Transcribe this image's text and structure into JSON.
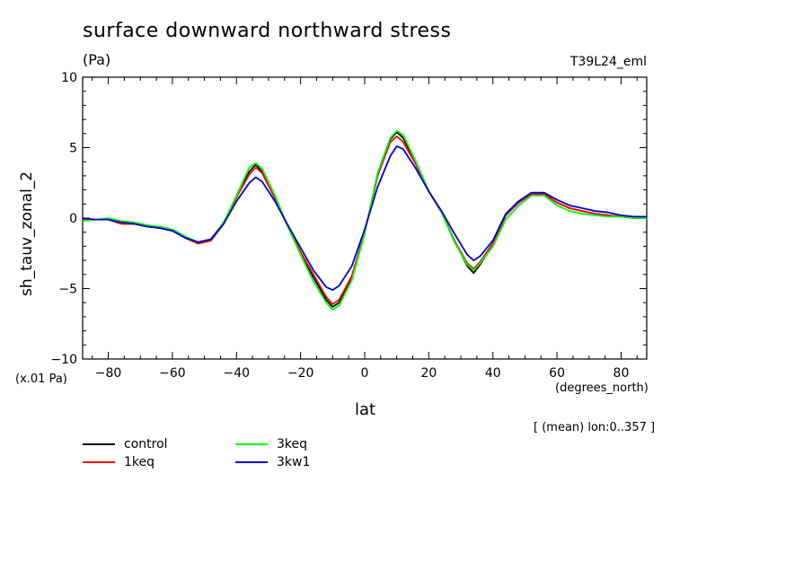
{
  "title": "surface downward northward stress",
  "units": "(Pa)",
  "run_id": "T39L24_eml",
  "scale_note": "(x.01 Pa)",
  "x_units": "(degrees_north)",
  "mean_note": "[ (mean) lon:0..357 ]",
  "chart_data": {
    "type": "line",
    "title": "surface downward northward stress",
    "xlabel": "lat",
    "ylabel": "sh_tauv_zonal_2",
    "xlim": [
      -88,
      88
    ],
    "ylim": [
      -10,
      10
    ],
    "xticks": [
      -80,
      -60,
      -40,
      -20,
      0,
      20,
      40,
      60,
      80
    ],
    "yticks": [
      -10,
      -5,
      0,
      5,
      10
    ],
    "x": [
      -88,
      -84,
      -80,
      -76,
      -72,
      -68,
      -64,
      -60,
      -56,
      -52,
      -48,
      -44,
      -40,
      -36,
      -34,
      -32,
      -28,
      -24,
      -20,
      -16,
      -12,
      -10,
      -8,
      -4,
      0,
      4,
      8,
      10,
      12,
      16,
      20,
      24,
      28,
      32,
      34,
      36,
      40,
      44,
      48,
      52,
      56,
      60,
      64,
      68,
      72,
      76,
      80,
      84,
      88
    ],
    "series": [
      {
        "name": "control",
        "color": "#000000",
        "values": [
          -0.1,
          -0.1,
          -0.1,
          -0.4,
          -0.4,
          -0.6,
          -0.7,
          -0.9,
          -1.4,
          -1.8,
          -1.6,
          -0.4,
          1.5,
          3.3,
          3.8,
          3.3,
          1.5,
          -0.6,
          -2.5,
          -4.2,
          -5.8,
          -6.3,
          -6.0,
          -4.2,
          -1.0,
          3.0,
          5.6,
          6.1,
          5.7,
          3.9,
          1.9,
          0.4,
          -1.6,
          -3.4,
          -3.9,
          -3.3,
          -1.9,
          0.2,
          1.1,
          1.7,
          1.7,
          1.1,
          0.7,
          0.5,
          0.3,
          0.2,
          0.1,
          0.0,
          0.0
        ]
      },
      {
        "name": "1keq",
        "color": "#ff0000",
        "values": [
          -0.1,
          -0.1,
          -0.1,
          -0.4,
          -0.4,
          -0.6,
          -0.7,
          -0.9,
          -1.4,
          -1.8,
          -1.6,
          -0.4,
          1.5,
          3.1,
          3.6,
          3.2,
          1.4,
          -0.6,
          -2.4,
          -4.0,
          -5.6,
          -6.1,
          -5.8,
          -4.1,
          -1.0,
          3.0,
          5.4,
          5.8,
          5.4,
          3.8,
          1.9,
          0.4,
          -1.6,
          -3.2,
          -3.6,
          -3.1,
          -1.8,
          0.2,
          1.1,
          1.7,
          1.7,
          1.1,
          0.7,
          0.5,
          0.3,
          0.2,
          0.1,
          0.0,
          0.0
        ]
      },
      {
        "name": "3keq",
        "color": "#00ff00",
        "values": [
          -0.2,
          -0.1,
          0.0,
          -0.2,
          -0.3,
          -0.5,
          -0.6,
          -0.8,
          -1.3,
          -1.7,
          -1.5,
          -0.3,
          1.6,
          3.6,
          3.9,
          3.5,
          1.6,
          -0.6,
          -2.6,
          -4.5,
          -6.0,
          -6.5,
          -6.2,
          -4.4,
          -1.1,
          3.2,
          5.7,
          6.2,
          5.9,
          4.0,
          1.9,
          0.4,
          -1.7,
          -3.3,
          -3.7,
          -3.2,
          -2.0,
          -0.1,
          0.9,
          1.6,
          1.6,
          0.9,
          0.5,
          0.3,
          0.2,
          0.1,
          0.1,
          0.0,
          0.0
        ]
      },
      {
        "name": "3kw1",
        "color": "#0000cc",
        "values": [
          0.0,
          -0.1,
          -0.1,
          -0.3,
          -0.4,
          -0.6,
          -0.7,
          -0.9,
          -1.4,
          -1.7,
          -1.5,
          -0.4,
          1.2,
          2.5,
          2.9,
          2.6,
          1.2,
          -0.5,
          -2.1,
          -3.7,
          -4.9,
          -5.1,
          -4.8,
          -3.4,
          -0.8,
          2.2,
          4.4,
          5.1,
          4.9,
          3.5,
          1.9,
          0.5,
          -1.1,
          -2.6,
          -3.0,
          -2.7,
          -1.6,
          0.3,
          1.2,
          1.8,
          1.8,
          1.3,
          0.9,
          0.7,
          0.5,
          0.4,
          0.2,
          0.1,
          0.1
        ]
      }
    ],
    "legend": [
      "control",
      "1keq",
      "3keq",
      "3kw1"
    ],
    "legend_position": "below"
  }
}
